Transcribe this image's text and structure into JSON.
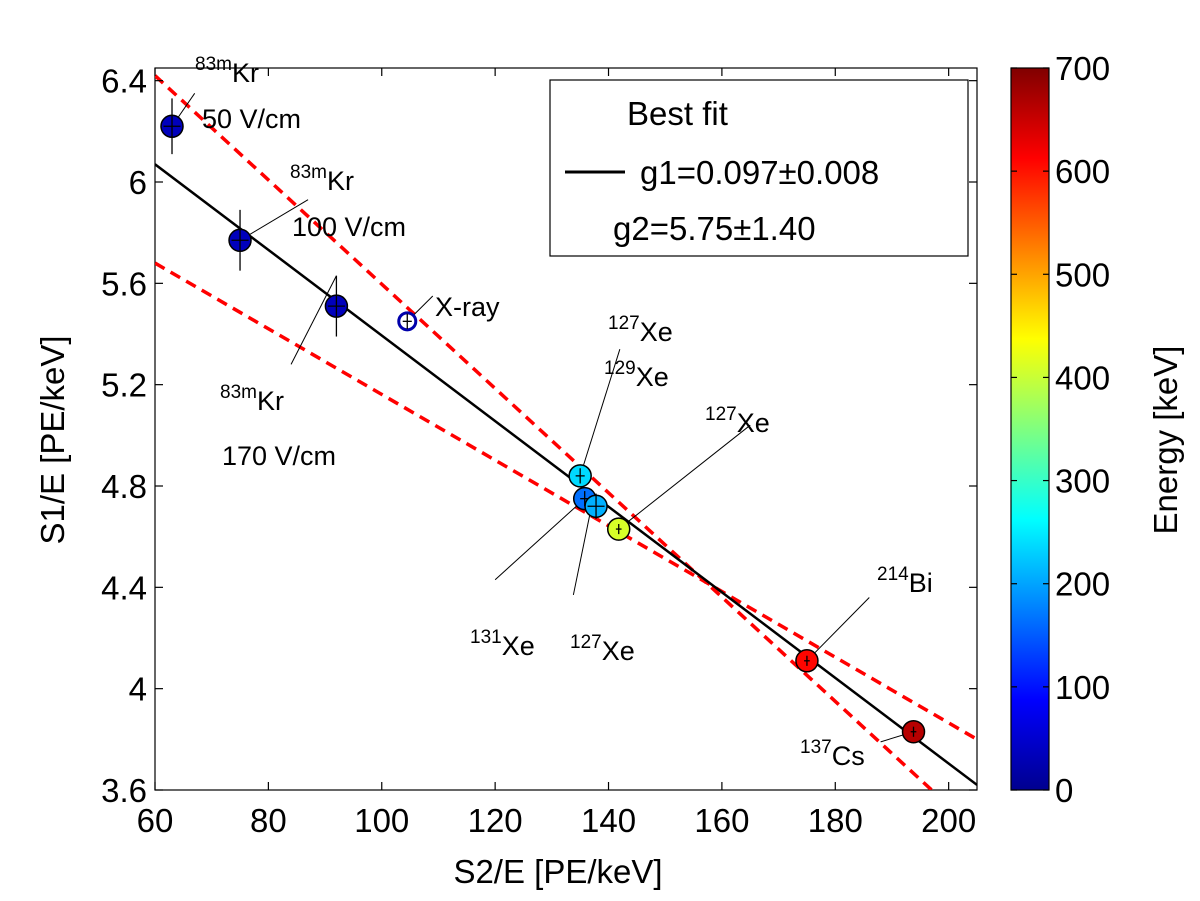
{
  "chart_data": {
    "type": "scatter",
    "xlabel": "S2/E [PE/keV]",
    "ylabel": "S1/E [PE/keV]",
    "xlim": [
      60,
      205
    ],
    "ylim": [
      3.6,
      6.45
    ],
    "x_ticks": [
      "60",
      "80",
      "100",
      "120",
      "140",
      "160",
      "180",
      "200"
    ],
    "y_ticks": [
      "3.6",
      "4",
      "4.4",
      "4.8",
      "5.2",
      "5.6",
      "6",
      "6.4"
    ],
    "grid": false,
    "colorbar": {
      "label": "Energy [keV]",
      "range": [
        0,
        700
      ],
      "ticks": [
        "0",
        "100",
        "200",
        "300",
        "400",
        "500",
        "600",
        "700"
      ],
      "colormap": "jet"
    },
    "legend": {
      "title": "Best fit",
      "line1": "g1=0.097±0.008",
      "line2": "g2=5.75±1.40",
      "placement": "top-right"
    },
    "points": [
      {
        "x": 63.0,
        "y": 6.22,
        "energy": 41.5,
        "yerr": 0.11,
        "xerr": 1.5,
        "style": "filled"
      },
      {
        "x": 75.0,
        "y": 5.77,
        "energy": 41.5,
        "yerr": 0.12,
        "xerr": 1.5,
        "style": "filled"
      },
      {
        "x": 92.0,
        "y": 5.51,
        "energy": 41.5,
        "yerr": 0.12,
        "xerr": 1.5,
        "style": "filled"
      },
      {
        "x": 104.5,
        "y": 5.45,
        "energy": 30,
        "yerr": 0.03,
        "xerr": 0.8,
        "style": "open"
      },
      {
        "x": 135.0,
        "y": 4.84,
        "energy": 236.8,
        "yerr": 0.03,
        "xerr": 0.8,
        "style": "filled"
      },
      {
        "x": 135.8,
        "y": 4.75,
        "energy": 163.9,
        "yerr": 0.03,
        "xerr": 0.8,
        "style": "filled"
      },
      {
        "x": 137.8,
        "y": 4.72,
        "energy": 208.3,
        "yerr": 0.05,
        "xerr": 1.5,
        "style": "filled"
      },
      {
        "x": 141.8,
        "y": 4.63,
        "energy": 410,
        "yerr": 0.02,
        "xerr": 0.5,
        "style": "filled"
      },
      {
        "x": 175.0,
        "y": 4.11,
        "energy": 609,
        "yerr": 0.02,
        "xerr": 0.5,
        "style": "filled"
      },
      {
        "x": 193.8,
        "y": 3.83,
        "energy": 662,
        "yerr": 0.02,
        "xerr": 0.5,
        "style": "filled"
      }
    ],
    "fit_line": {
      "color": "#000000",
      "points": [
        [
          60,
          6.07
        ],
        [
          205,
          3.62
        ]
      ]
    },
    "bound_lines": {
      "color": "#ff0000",
      "style": "dashed",
      "lines": [
        [
          [
            60,
            6.42
          ],
          [
            197,
            3.6
          ]
        ],
        [
          [
            60,
            5.68
          ],
          [
            205,
            3.8
          ]
        ]
      ]
    },
    "annotations": [
      {
        "sup": "83m",
        "base": "Kr",
        "line2": "50 V/cm",
        "anchor": [
          63.0,
          6.22
        ],
        "lead": [
          67,
          6.35
        ]
      },
      {
        "sup": "83m",
        "base": "Kr",
        "line2": "100 V/cm",
        "anchor": [
          75.0,
          5.77
        ],
        "lead": [
          87,
          5.93
        ]
      },
      {
        "sup": "83m",
        "base": "Kr",
        "line2": "170 V/cm",
        "anchor": [
          92.0,
          5.63
        ],
        "lead": [
          84,
          5.28
        ]
      },
      {
        "sup": "",
        "base": "X-ray",
        "line2": "",
        "anchor": [
          104.5,
          5.45
        ],
        "lead": [
          109,
          5.55
        ]
      },
      {
        "sup": "127",
        "base": "Xe",
        "line2": "",
        "anchor": null,
        "lead": null
      },
      {
        "sup": "129",
        "base": "Xe",
        "line2": "",
        "anchor": [
          135.0,
          4.84
        ],
        "lead": [
          142,
          5.34
        ]
      },
      {
        "sup": "127",
        "base": "Xe",
        "line2": "",
        "anchor": [
          141.8,
          4.63
        ],
        "lead": [
          165,
          5.04
        ]
      },
      {
        "sup": "131",
        "base": "Xe",
        "line2": "",
        "anchor": [
          135.8,
          4.75
        ],
        "lead": [
          120,
          4.43
        ]
      },
      {
        "sup": "127",
        "base": "Xe",
        "line2": "",
        "anchor": [
          137.0,
          4.72
        ],
        "lead": [
          133.8,
          4.37
        ]
      },
      {
        "sup": "214",
        "base": "Bi",
        "line2": "",
        "anchor": [
          175.0,
          4.11
        ],
        "lead": [
          186,
          4.36
        ]
      },
      {
        "sup": "137",
        "base": "Cs",
        "line2": "",
        "anchor": [
          193.8,
          3.83
        ],
        "lead": [
          188,
          3.79
        ]
      }
    ],
    "colors": {
      "fit": "#000000",
      "bounds": "#ff0000"
    }
  }
}
